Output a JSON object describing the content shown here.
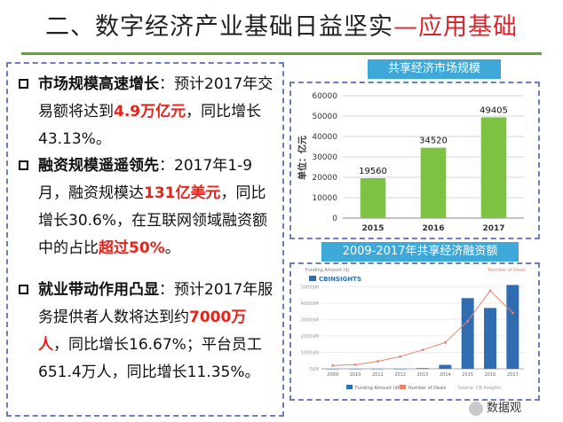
{
  "title": {
    "main": "二、数字经济产业基础日益坚实",
    "highlight": "—应用基础"
  },
  "points": [
    {
      "lead": "市场规模高速增长",
      "text_before": "：预计2017年交易额将达到",
      "emph": "4.9万亿元",
      "text_after": "，同比增长43.13%。",
      "emph2": "",
      "text_end": ""
    },
    {
      "lead": "融资规模遥遥领先",
      "text_before": "：2017年1-9月，融资规模达",
      "emph": "131亿美元",
      "text_after": "，同比增长30.6%，在互联网领域融资额中的占比",
      "emph2": "超过50%",
      "text_end": "。"
    },
    {
      "lead": "就业带动作用凸显",
      "text_before": "：预计2017年服务提供者人数将达到约",
      "emph": "7000万人",
      "text_after": "，同比增长16.67%；平台员工651.4万人，同比增长11.35%。",
      "emph2": "",
      "text_end": ""
    }
  ],
  "chart_data": [
    {
      "type": "bar",
      "title": "共享经济市场规模",
      "ylabel": "单位：亿元",
      "categories": [
        "2015",
        "2016",
        "2017"
      ],
      "values": [
        19560,
        34520,
        49405
      ],
      "yticks": [
        0,
        10000,
        20000,
        30000,
        40000,
        50000,
        60000
      ],
      "ylim": [
        0,
        60000
      ],
      "bar_color": "#7dc242",
      "grid": true
    },
    {
      "type": "bar",
      "title": "2009-2017年共享经济融资额",
      "source_logo": "CBINSIGHTS",
      "categories": [
        "2009",
        "2010",
        "2011",
        "2012",
        "2013",
        "2014",
        "2015",
        "2016",
        "2017"
      ],
      "series": [
        {
          "name": "Funding Amount ($M)",
          "values": [
            0,
            0,
            0,
            0,
            40,
            240,
            4300,
            3700,
            5100
          ],
          "color": "#2f6cb0"
        },
        {
          "name": "Number of Deals",
          "values": [
            4,
            5,
            9,
            15,
            23,
            32,
            58,
            95,
            68
          ],
          "color": "#e8836f"
        }
      ],
      "y_left_label": "Funding Amount ($)",
      "y_right_label": "Number of Deals",
      "ylim": [
        0,
        5500
      ],
      "y2lim": [
        0,
        110
      ],
      "ytick_label": "$M",
      "legend_position": "bottom",
      "caption": "Source: CB Insights"
    }
  ],
  "watermark": "数据观",
  "colors": {
    "accent_green": "#5aa932",
    "highlight_red": "#e4231b",
    "panel_blue": "#3ea8d8",
    "dash_border": "#6a7fb6"
  }
}
